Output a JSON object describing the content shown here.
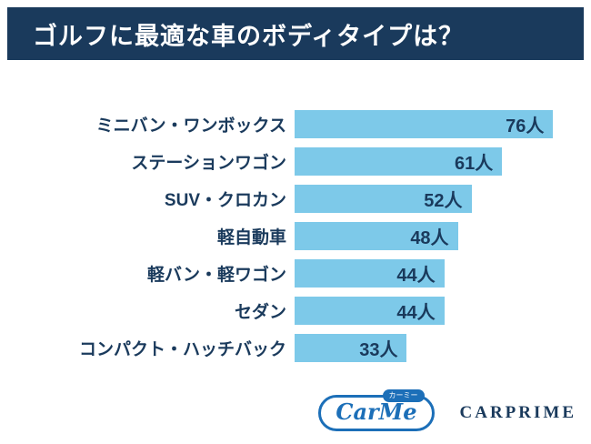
{
  "header": {
    "title": "ゴルフに最適な車のボディタイプは？"
  },
  "chart_data": {
    "type": "bar",
    "orientation": "horizontal",
    "title": "ゴルフに最適な車のボディタイプは？",
    "categories": [
      "ミニバン・ワンボックス",
      "ステーションワゴン",
      "SUV・クロカン",
      "軽自動車",
      "軽バン・軽ワゴン",
      "セダン",
      "コンパクト・ハッチバック"
    ],
    "values": [
      76,
      61,
      52,
      48,
      44,
      44,
      33
    ],
    "unit": "人",
    "value_labels": [
      "76人",
      "61人",
      "52人",
      "48人",
      "44人",
      "44人",
      "33人"
    ],
    "xlim": [
      0,
      85
    ],
    "axis_visible": false,
    "grid": false,
    "legend": false,
    "bar_color": "#7dc9e9",
    "label_color": "#1a3a5c"
  },
  "footer": {
    "carme_logo_text": "CarMe",
    "carme_badge": "カーミー",
    "carprime_text": "CARPRIME"
  },
  "colors": {
    "header_background": "#1a3a5c",
    "bar_blue": "#7dc9e9",
    "text_navy": "#1a3a5c",
    "logo_blue": "#1c6fb8",
    "background": "#ffffff"
  }
}
